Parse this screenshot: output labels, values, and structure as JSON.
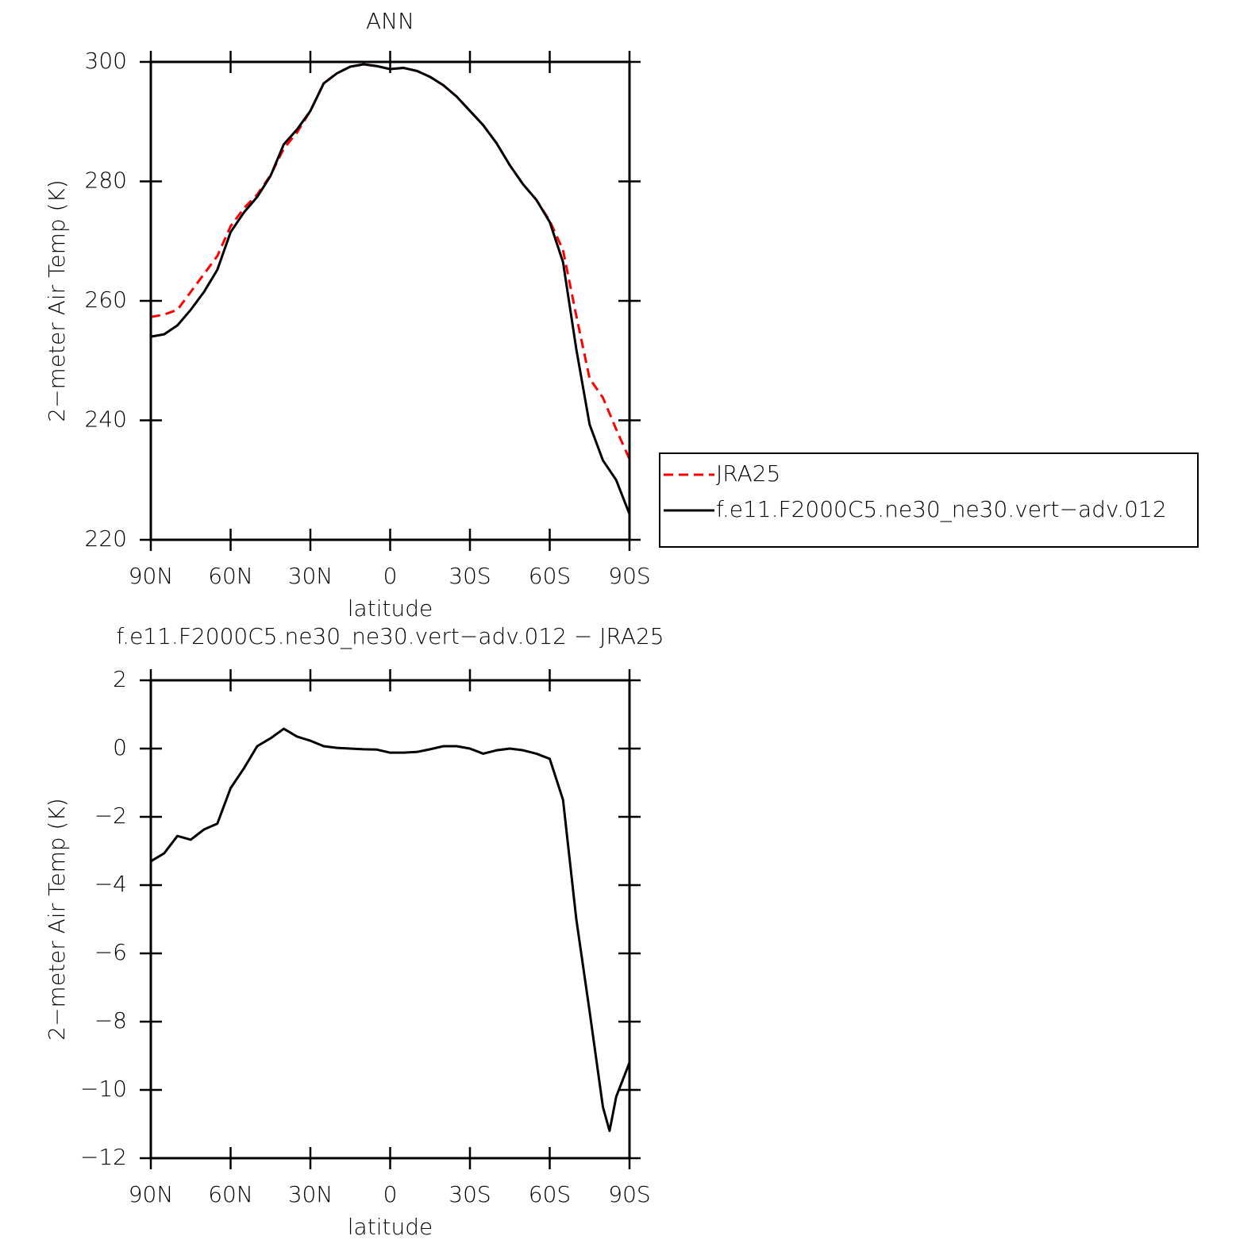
{
  "chart_data": [
    {
      "type": "line",
      "title": "ANN",
      "xlabel": "latitude",
      "ylabel": "2−meter Air Temp (K)",
      "x": [
        90,
        85,
        80,
        75,
        70,
        65,
        60,
        55,
        50,
        45,
        40,
        35,
        30,
        25,
        20,
        15,
        10,
        5,
        0,
        -5,
        -10,
        -15,
        -20,
        -25,
        -30,
        -35,
        -40,
        -45,
        -50,
        -55,
        -60,
        -65,
        -70,
        -75,
        -80,
        -85,
        -90
      ],
      "xlim": [
        90,
        -90
      ],
      "xticks": [
        {
          "value": 90,
          "label": "90N"
        },
        {
          "value": 60,
          "label": "60N"
        },
        {
          "value": 30,
          "label": "30N"
        },
        0,
        {
          "value": -30,
          "label": "30S"
        },
        {
          "value": -60,
          "label": "60S"
        },
        {
          "value": -90,
          "label": "90S"
        }
      ],
      "ylim": [
        220,
        300
      ],
      "yticks": [
        220,
        240,
        260,
        280,
        300
      ],
      "series": [
        {
          "name": "JRA25",
          "color": "#ff0000",
          "style": "dashed",
          "values": [
            257.3,
            257.7,
            258.5,
            261.5,
            264.5,
            267.5,
            272.5,
            275.5,
            277.8,
            281.0,
            285.5,
            288.2,
            291.8,
            296.4,
            298.1,
            299.2,
            299.6,
            299.3,
            298.8,
            299.0,
            298.5,
            297.5,
            296.1,
            294.2,
            291.8,
            289.4,
            286.4,
            282.7,
            279.5,
            276.9,
            273.4,
            268.5,
            257.5,
            247.0,
            243.8,
            238.5,
            233.5
          ]
        },
        {
          "name": "f.e11.F2000C5.ne30_ne30.vert−adv.012",
          "color": "#000000",
          "style": "solid",
          "values": [
            254.0,
            254.4,
            255.9,
            258.5,
            261.5,
            265.2,
            271.5,
            274.8,
            277.4,
            280.9,
            286.2,
            288.7,
            291.8,
            296.4,
            298.1,
            299.2,
            299.6,
            299.3,
            298.8,
            299.0,
            298.5,
            297.5,
            296.1,
            294.2,
            291.8,
            289.4,
            286.4,
            282.7,
            279.5,
            276.9,
            273.2,
            266.5,
            251.9,
            239.3,
            233.3,
            230.0,
            224.3
          ]
        }
      ]
    },
    {
      "type": "line",
      "title": "f.e11.F2000C5.ne30_ne30.vert−adv.012 − JRA25",
      "xlabel": "latitude",
      "ylabel": "2−meter Air Temp (K)",
      "x": [
        90,
        85,
        80,
        75,
        70,
        65,
        60,
        55,
        50,
        45,
        40,
        35,
        30,
        25,
        20,
        15,
        10,
        5,
        0,
        -5,
        -10,
        -15,
        -20,
        -25,
        -30,
        -35,
        -40,
        -45,
        -50,
        -55,
        -60,
        -65,
        -70,
        -75,
        -80,
        -82.5,
        -85,
        -90
      ],
      "xlim": [
        90,
        -90
      ],
      "xticks": [
        {
          "value": 90,
          "label": "90N"
        },
        {
          "value": 60,
          "label": "60N"
        },
        {
          "value": 30,
          "label": "30N"
        },
        0,
        {
          "value": -30,
          "label": "30S"
        },
        {
          "value": -60,
          "label": "60S"
        },
        {
          "value": -90,
          "label": "90S"
        }
      ],
      "ylim": [
        -12,
        2
      ],
      "yticks": [
        {
          "value": -12,
          "label": "−12"
        },
        {
          "value": -10,
          "label": "−10"
        },
        {
          "value": -8,
          "label": "−8"
        },
        {
          "value": -6,
          "label": "−6"
        },
        {
          "value": -4,
          "label": "−4"
        },
        {
          "value": -2,
          "label": "−2"
        },
        0,
        2
      ],
      "series": [
        {
          "color": "#000000",
          "style": "solid",
          "values": [
            -3.3,
            -3.07,
            -2.56,
            -2.67,
            -2.37,
            -2.2,
            -1.16,
            -0.58,
            0.07,
            0.3,
            0.58,
            0.35,
            0.23,
            0.07,
            0.02,
            0.0,
            -0.02,
            -0.03,
            -0.12,
            -0.12,
            -0.1,
            -0.02,
            0.07,
            0.07,
            0.0,
            -0.15,
            -0.05,
            0.0,
            -0.05,
            -0.15,
            -0.3,
            -1.5,
            -5.0,
            -7.7,
            -10.5,
            -11.2,
            -10.2,
            -9.2
          ]
        }
      ]
    }
  ]
}
